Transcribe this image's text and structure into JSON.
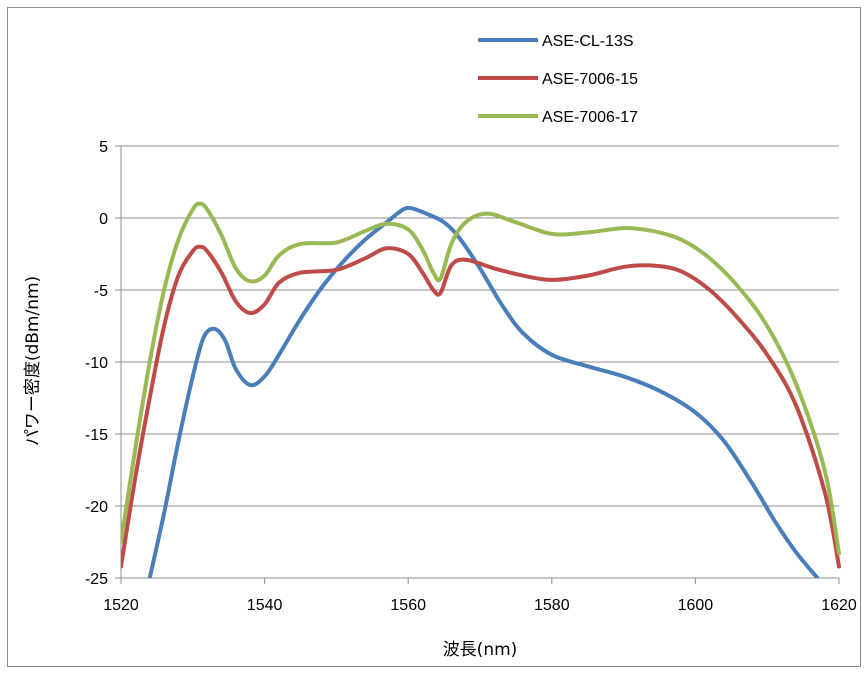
{
  "chart_data": {
    "type": "line",
    "title": "",
    "xlabel": "波長(nm)",
    "ylabel": "パワー密度(dBm/nm)",
    "xlim": [
      1520,
      1620
    ],
    "ylim": [
      -25,
      5
    ],
    "xticks": [
      1520,
      1540,
      1560,
      1580,
      1600,
      1620
    ],
    "yticks": [
      5,
      0,
      -5,
      -10,
      -15,
      -20,
      -25
    ],
    "grid": "horizontal",
    "legend_position": "top-right",
    "series": [
      {
        "name": "ASE-CL-13S",
        "color": "#4a7ebb",
        "x": [
          1524,
          1526,
          1528,
          1530,
          1531.5,
          1533,
          1534.5,
          1536,
          1538,
          1540,
          1542,
          1545,
          1548,
          1551,
          1554,
          1557,
          1559,
          1560,
          1561,
          1563,
          1565,
          1567,
          1570,
          1573,
          1576,
          1580,
          1585,
          1590,
          1595,
          1600,
          1604,
          1608,
          1611,
          1614,
          1617
        ],
        "y": [
          -25,
          -20.5,
          -15.5,
          -11,
          -8.3,
          -7.7,
          -8.5,
          -10.5,
          -11.6,
          -11,
          -9.5,
          -7,
          -4.8,
          -3,
          -1.5,
          -0.3,
          0.5,
          0.7,
          0.6,
          0.2,
          -0.3,
          -1.3,
          -3.5,
          -6,
          -8,
          -9.5,
          -10.3,
          -11,
          -12,
          -13.5,
          -15.5,
          -18.5,
          -21,
          -23.2,
          -25
        ]
      },
      {
        "name": "ASE-7006-15",
        "color": "#be4b48",
        "x": [
          1520,
          1522,
          1524,
          1526,
          1528,
          1530,
          1531,
          1532,
          1534,
          1536,
          1538,
          1540,
          1542,
          1545,
          1550,
          1554,
          1557,
          1560,
          1562,
          1563.5,
          1564.5,
          1566,
          1568,
          1572,
          1576,
          1580,
          1585,
          1590,
          1594,
          1598,
          1602,
          1606,
          1610,
          1614,
          1618,
          1620
        ],
        "y": [
          -24.2,
          -18,
          -12.5,
          -7.5,
          -4,
          -2.3,
          -2,
          -2.3,
          -3.8,
          -5.8,
          -6.6,
          -6,
          -4.5,
          -3.8,
          -3.6,
          -2.8,
          -2.1,
          -2.5,
          -3.8,
          -5,
          -5.2,
          -3.3,
          -2.9,
          -3.5,
          -4,
          -4.3,
          -4,
          -3.4,
          -3.3,
          -3.7,
          -5,
          -7,
          -9.5,
          -13,
          -19,
          -24.2
        ]
      },
      {
        "name": "ASE-7006-17",
        "color": "#98b954",
        "x": [
          1520,
          1522,
          1524,
          1526,
          1528,
          1530,
          1531,
          1532,
          1534,
          1536,
          1538,
          1540,
          1542,
          1545,
          1550,
          1554,
          1557,
          1560,
          1562,
          1563.5,
          1564.5,
          1566,
          1568,
          1571,
          1575,
          1580,
          1585,
          1590,
          1594,
          1598,
          1602,
          1606,
          1610,
          1614,
          1618,
          1620
        ],
        "y": [
          -22.5,
          -16,
          -10,
          -5,
          -1.5,
          0.6,
          1,
          0.6,
          -1.2,
          -3.5,
          -4.4,
          -4,
          -2.6,
          -1.8,
          -1.7,
          -0.9,
          -0.4,
          -0.8,
          -2.2,
          -3.8,
          -4.2,
          -1.8,
          -0.3,
          0.3,
          -0.3,
          -1.1,
          -1,
          -0.7,
          -0.9,
          -1.5,
          -2.8,
          -4.8,
          -7.5,
          -11.5,
          -17.5,
          -23.3
        ]
      }
    ]
  }
}
